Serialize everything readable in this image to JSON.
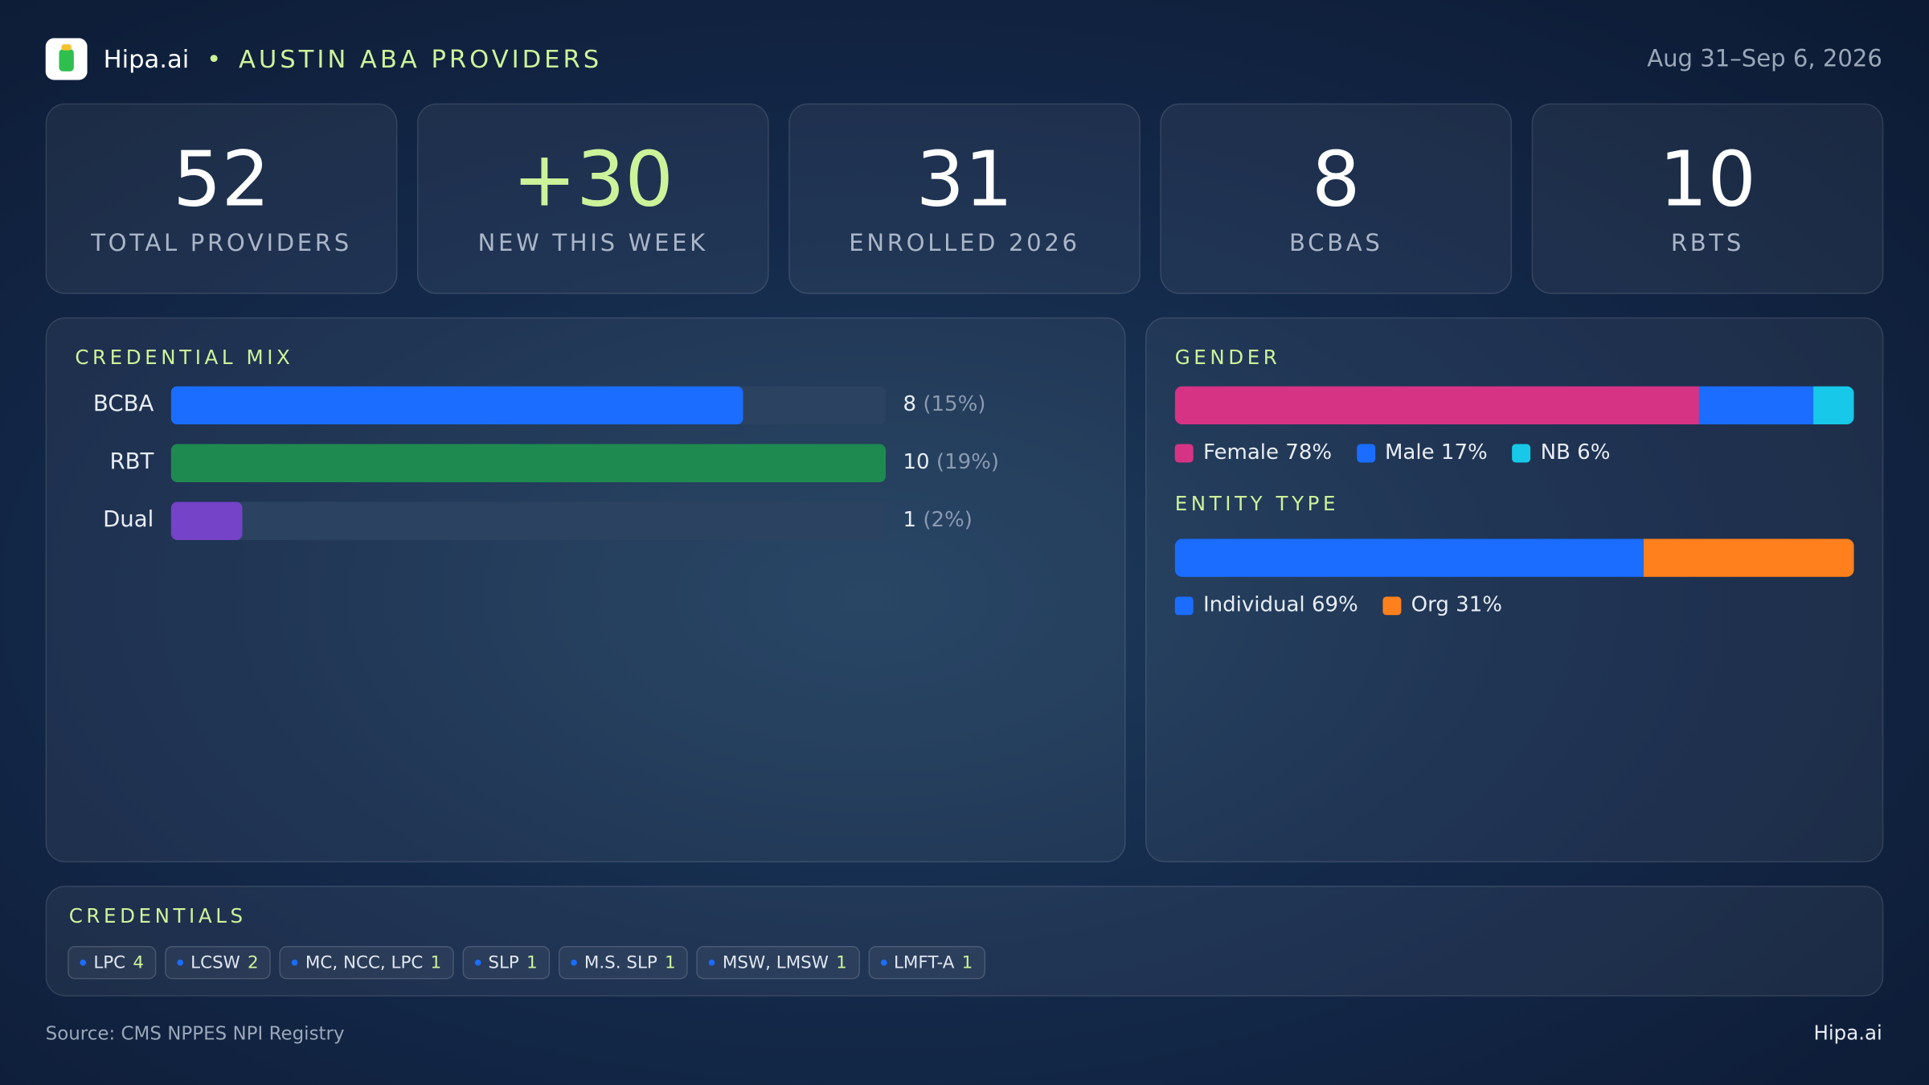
{
  "header": {
    "brand": "Hipa.ai",
    "title": "AUSTIN ABA PROVIDERS",
    "date_range": "Aug 31–Sep 6, 2026"
  },
  "kpis": [
    {
      "value": 52,
      "label": "TOTAL PROVIDERS"
    },
    {
      "value": "+30",
      "label": "NEW THIS WEEK"
    },
    {
      "value": 31,
      "label": "ENROLLED 2026"
    },
    {
      "value": 8,
      "label": "BCBAS"
    },
    {
      "value": 10,
      "label": "RBTS"
    }
  ],
  "credential_mix": {
    "title": "CREDENTIAL MIX",
    "xlim": [
      0,
      10
    ],
    "categories": [
      "BCBA",
      "RBT",
      "Dual"
    ],
    "values": [
      8,
      10,
      1
    ],
    "shares": [
      "(15%)",
      "(19%)",
      "(2%)"
    ],
    "colors": [
      "#1a6dff",
      "#1e8a50",
      "#7443c8"
    ]
  },
  "gender": {
    "title": "GENDER",
    "series": [
      {
        "name": "Female",
        "color": "#d63384",
        "value": 78,
        "value_label": "78%"
      },
      {
        "name": "Male",
        "color": "#1a6dff",
        "value": 17,
        "value_label": "17%"
      },
      {
        "name": "NB",
        "color": "#17c8e8",
        "value": 6,
        "value_label": "6%"
      }
    ]
  },
  "entity_type": {
    "title": "ENTITY TYPE",
    "series": [
      {
        "name": "Individual",
        "color": "#1a6dff",
        "value": 69,
        "value_label": "69%"
      },
      {
        "name": "Org",
        "color": "#ff801c",
        "value": 31,
        "value_label": "31%"
      }
    ]
  },
  "credentials": {
    "title": "CREDENTIALS",
    "items": [
      {
        "label": "LPC",
        "count": 4
      },
      {
        "label": "LCSW",
        "count": 2
      },
      {
        "label": "MC, NCC, LPC",
        "count": 1
      },
      {
        "label": "SLP",
        "count": 1
      },
      {
        "label": "M.S. SLP",
        "count": 1
      },
      {
        "label": "MSW, LMSW",
        "count": 1
      },
      {
        "label": "LMFT-A",
        "count": 1
      }
    ]
  },
  "footer": {
    "source": "Source: CMS NPPES NPI Registry",
    "brand": "Hipa.ai"
  }
}
